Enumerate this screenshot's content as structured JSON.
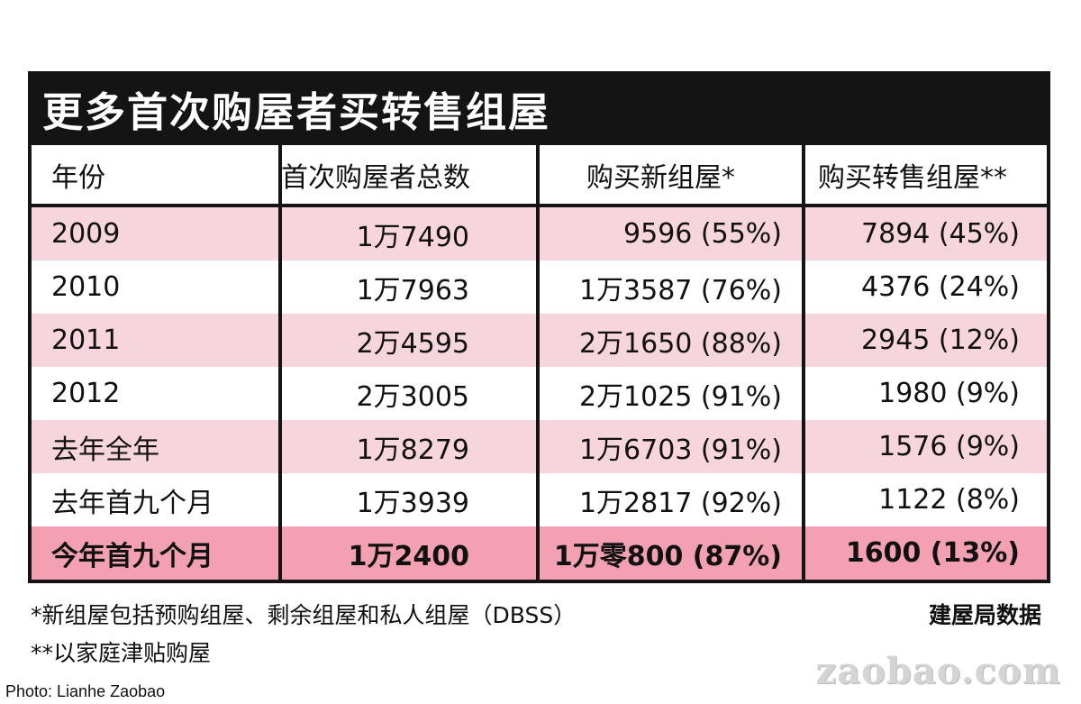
{
  "title": "更多首次购屋者买转售组屋",
  "table": {
    "headers": [
      "年份",
      "首次购屋者总数",
      "购买新组屋*",
      "购买转售组屋**"
    ],
    "rows": [
      [
        "2009",
        "1万7490",
        "9596 (55%)",
        "7894 (45%)"
      ],
      [
        "2010",
        "1万7963",
        "1万3587 (76%)",
        "4376 (24%)"
      ],
      [
        "2011",
        "2万4595",
        "2万1650 (88%)",
        "2945 (12%)"
      ],
      [
        "2012",
        "2万3005",
        "2万1025 (91%)",
        "1980 (9%)"
      ],
      [
        "去年全年",
        "1万8279",
        "1万6703 (91%)",
        "1576 (9%)"
      ],
      [
        "去年首九个月",
        "1万3939",
        "1万2817 (92%)",
        "1122 (8%)"
      ],
      [
        "今年首九个月",
        "1万2400",
        "1万零800 (87%)",
        "1600 (13%)"
      ]
    ]
  },
  "footnotes": [
    "*新组屋包括预购组屋、剩余组屋和私人组屋（DBSS）",
    "**以家庭津贴购屋"
  ],
  "source": "建屋局数据",
  "watermark": "zaobao.com",
  "credit": "Photo: Lianhe Zaobao",
  "colors": {
    "panel_black": "#141414",
    "row_pink": "#f7d5dc",
    "row_highlight": "#f2a0b2"
  }
}
